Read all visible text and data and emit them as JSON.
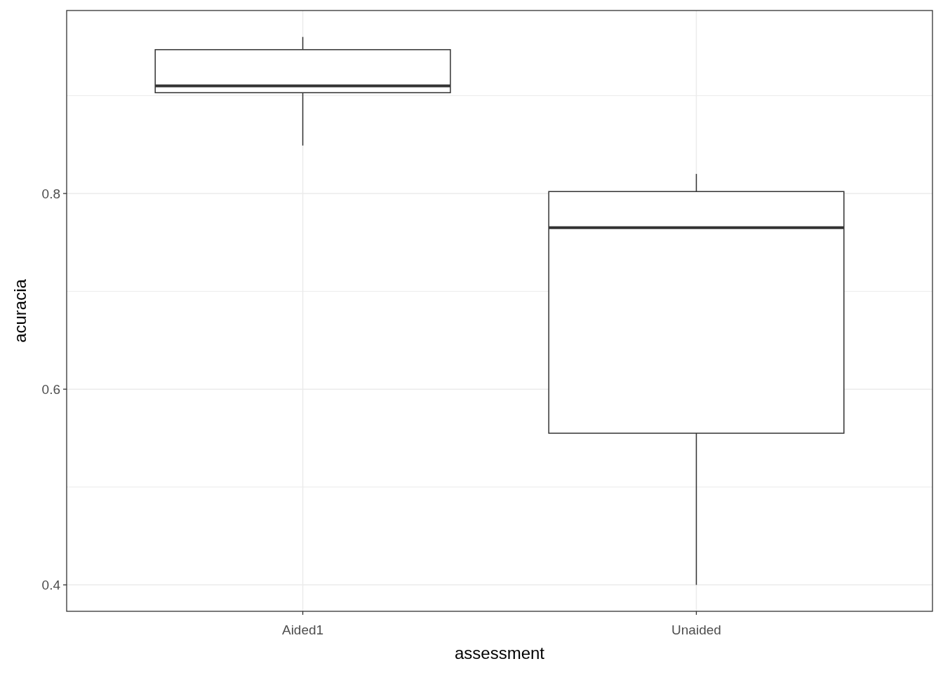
{
  "chart_data": {
    "type": "box",
    "xlabel": "assessment",
    "ylabel": "acuracia",
    "categories": [
      "Aided1",
      "Unaided"
    ],
    "boxes": [
      {
        "low": 0.849,
        "q1": 0.903,
        "median": 0.91,
        "q3": 0.947,
        "high": 0.96
      },
      {
        "low": 0.4,
        "q1": 0.555,
        "median": 0.765,
        "q3": 0.802,
        "high": 0.82
      }
    ],
    "ylim": [
      0.373,
      0.987
    ],
    "yticks": [
      0.4,
      0.6,
      0.8
    ],
    "grid": true
  }
}
